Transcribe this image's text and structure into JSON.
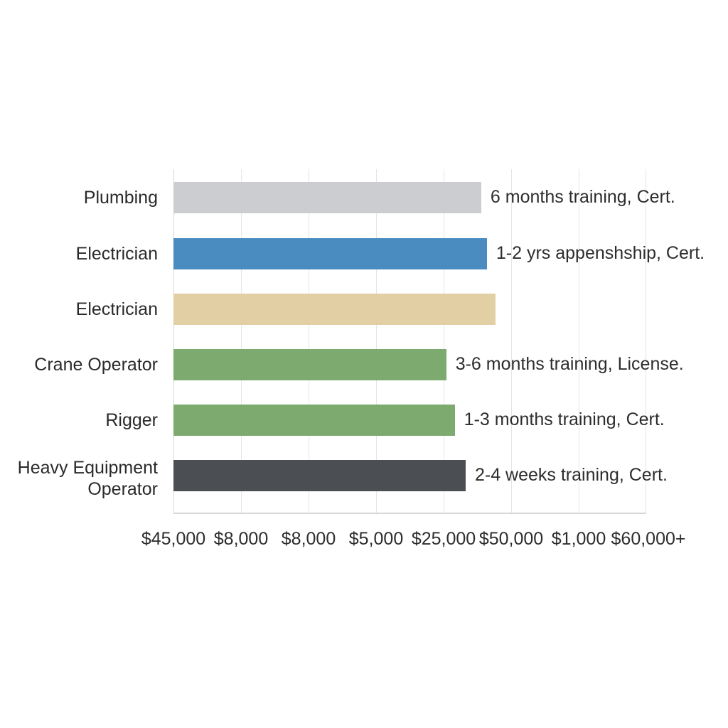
{
  "canvas": {
    "background": "#ffffff"
  },
  "chart_data": {
    "type": "bar",
    "orientation": "horizontal",
    "title": "",
    "xlabel": "",
    "ylabel": "",
    "grid": true,
    "legend": false,
    "x_range_pct": [
      0,
      100
    ],
    "categories": [
      "Plumbing",
      "Electrician",
      "Electrician",
      "Crane Operator",
      "Rigger",
      "Heavy Equipment Operator"
    ],
    "x_tick_labels": [
      "$45,000",
      "$8,000",
      "$8,000",
      "$5,000",
      "$25,000",
      "$50,000",
      "$1,000",
      "$60,000+"
    ],
    "bars": [
      {
        "category": "Plumbing",
        "length_pct": 65.1,
        "color": "#cbcdd0",
        "annotation": "6 months training, Cert."
      },
      {
        "category": "Electrician",
        "length_pct": 66.3,
        "color": "#4a8cc0",
        "annotation": "1-2 yrs appenshship, Cert."
      },
      {
        "category": "Electrician",
        "length_pct": 68.1,
        "color": "#e2cfa3",
        "annotation": ""
      },
      {
        "category": "Crane Operator",
        "length_pct": 57.7,
        "color": "#7daa6e",
        "annotation": "3-6 months training, License."
      },
      {
        "category": "Rigger",
        "length_pct": 59.5,
        "color": "#7daa6e",
        "annotation": "1-3 months training, Cert."
      },
      {
        "category": "Heavy Equipment Operator",
        "length_pct": 61.8,
        "color": "#4b4f54",
        "annotation": "2-4 weeks training, Cert."
      }
    ],
    "bar_colors": {
      "gray": "#cbcdd0",
      "blue": "#4a8cc0",
      "tan": "#e2cfa3",
      "green": "#7daa6e",
      "dark": "#4b4f54"
    },
    "gridline_color": "#e3e5e7",
    "axis_color": "#d5d7d9"
  }
}
